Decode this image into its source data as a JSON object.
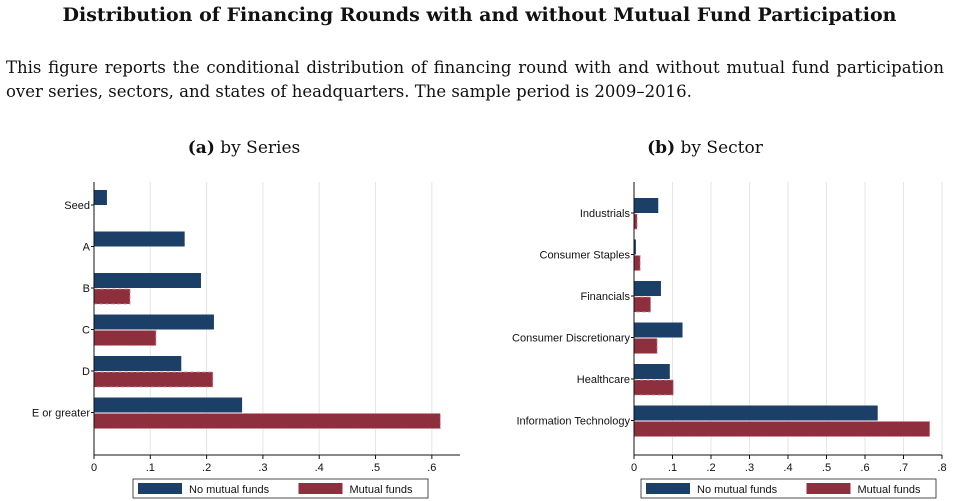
{
  "title": "Distribution of Financing Rounds with and without Mutual Fund Participation",
  "caption": "This figure reports the conditional distribution of financing round with and without mutual fund participation over series, sectors, and states of headquarters. The sample period is 2009–2016.",
  "colors": {
    "no_mf": "#1b3f66",
    "mf": "#8e2f3d",
    "grid": "#e6e6e6"
  },
  "legend": {
    "no_mf": "No mutual funds",
    "mf": "Mutual funds"
  },
  "chart_data": [
    {
      "type": "bar",
      "orientation": "horizontal",
      "panel_letter": "(a)",
      "panel_title": "by Series",
      "categories": [
        "Seed",
        "A",
        "B",
        "C",
        "D",
        "E or greater"
      ],
      "series": [
        {
          "name": "No mutual funds",
          "values": [
            0.023,
            0.161,
            0.19,
            0.213,
            0.155,
            0.263
          ]
        },
        {
          "name": "Mutual funds",
          "values": [
            0.0,
            0.0,
            0.064,
            0.11,
            0.211,
            0.615
          ]
        }
      ],
      "xlim": [
        0,
        0.65
      ],
      "xticks": [
        0,
        0.1,
        0.2,
        0.3,
        0.4,
        0.5,
        0.6
      ],
      "xticklabels": [
        "0",
        ".1",
        ".2",
        ".3",
        ".4",
        ".5",
        ".6"
      ],
      "grid": true,
      "legend_position": "bottom"
    },
    {
      "type": "bar",
      "orientation": "horizontal",
      "panel_letter": "(b)",
      "panel_title": "by Sector",
      "categories": [
        "Industrials",
        "Consumer Staples",
        "Financials",
        "Consumer Discretionary",
        "Healthcare",
        "Information Technology"
      ],
      "series": [
        {
          "name": "No mutual funds",
          "values": [
            0.063,
            0.005,
            0.07,
            0.126,
            0.093,
            0.633
          ]
        },
        {
          "name": "Mutual funds",
          "values": [
            0.008,
            0.016,
            0.043,
            0.06,
            0.102,
            0.768
          ]
        }
      ],
      "xlim": [
        0,
        0.8
      ],
      "xticks": [
        0,
        0.1,
        0.2,
        0.3,
        0.4,
        0.5,
        0.6,
        0.7,
        0.8
      ],
      "xticklabels": [
        "0",
        ".1",
        ".2",
        ".3",
        ".4",
        ".5",
        ".6",
        ".7",
        ".8"
      ],
      "grid": true,
      "legend_position": "bottom"
    }
  ]
}
